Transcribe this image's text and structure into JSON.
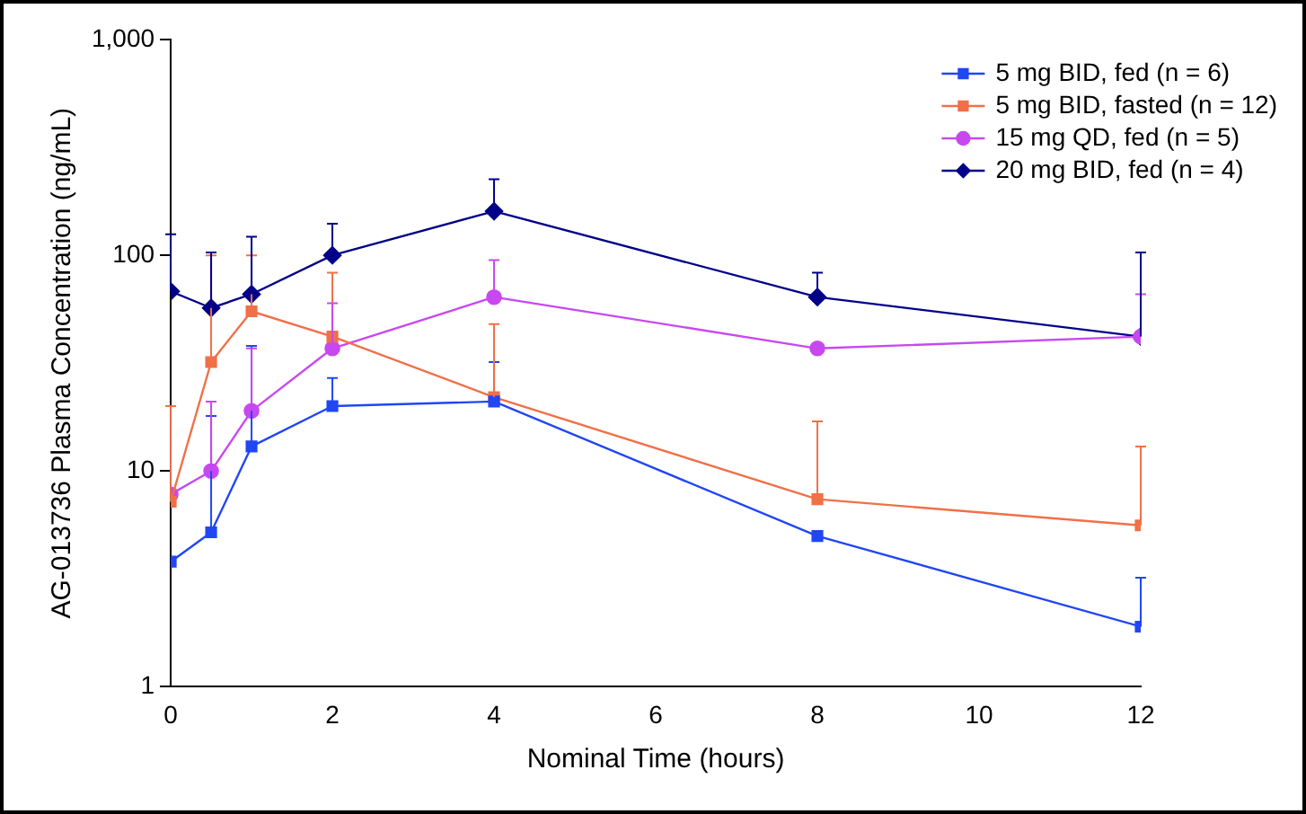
{
  "chart_data": {
    "type": "line",
    "xlabel": "Nominal Time (hours)",
    "ylabel": "AG-013736 Plasma Concentration (ng/mL)",
    "x": [
      0,
      0.5,
      1,
      2,
      4,
      8,
      12
    ],
    "series": [
      {
        "name": "5 mg BID, fed (n = 6)",
        "color": "#2046f5",
        "marker": "square",
        "values": [
          3.8,
          5.2,
          13,
          20,
          21,
          5,
          1.9
        ],
        "errors": [
          null,
          [
            5.2,
            18
          ],
          [
            13,
            38
          ],
          [
            20,
            27
          ],
          [
            21,
            32
          ],
          null,
          [
            1.9,
            3.2
          ]
        ]
      },
      {
        "name": "5 mg BID, fasted (n = 12)",
        "color": "#f07048",
        "marker": "square",
        "values": [
          7.2,
          32,
          55,
          42,
          22,
          7.4,
          5.6
        ],
        "errors": [
          [
            7.2,
            20
          ],
          [
            32,
            100
          ],
          [
            55,
            100
          ],
          [
            42,
            83
          ],
          [
            22,
            48
          ],
          [
            7.4,
            17
          ],
          [
            5.6,
            13
          ]
        ]
      },
      {
        "name": "15 mg QD, fed (n = 5)",
        "color": "#c848f0",
        "marker": "circle",
        "values": [
          7.8,
          10,
          19,
          37,
          64,
          37,
          42
        ],
        "errors": [
          null,
          [
            10,
            21
          ],
          [
            19,
            37
          ],
          [
            37,
            60
          ],
          [
            64,
            95
          ],
          null,
          [
            42,
            66
          ]
        ]
      },
      {
        "name": "20 mg BID, fed (n = 4)",
        "color": "#000088",
        "marker": "diamond",
        "values": [
          68,
          57,
          66,
          100,
          160,
          64,
          42
        ],
        "errors": [
          [
            68,
            125
          ],
          [
            57,
            103
          ],
          [
            66,
            122
          ],
          [
            100,
            140
          ],
          [
            160,
            225
          ],
          [
            64,
            83
          ],
          [
            42,
            103
          ]
        ]
      }
    ],
    "xlim": [
      0,
      12
    ],
    "xticks": [
      0,
      2,
      4,
      6,
      8,
      10,
      12
    ],
    "ylim": [
      1,
      1000
    ],
    "yticks": [
      1,
      10,
      100,
      {
        "value": 1000,
        "label": "1,000"
      }
    ],
    "log": "y",
    "grid": false,
    "legend": "top right",
    "line_style": "solid"
  }
}
